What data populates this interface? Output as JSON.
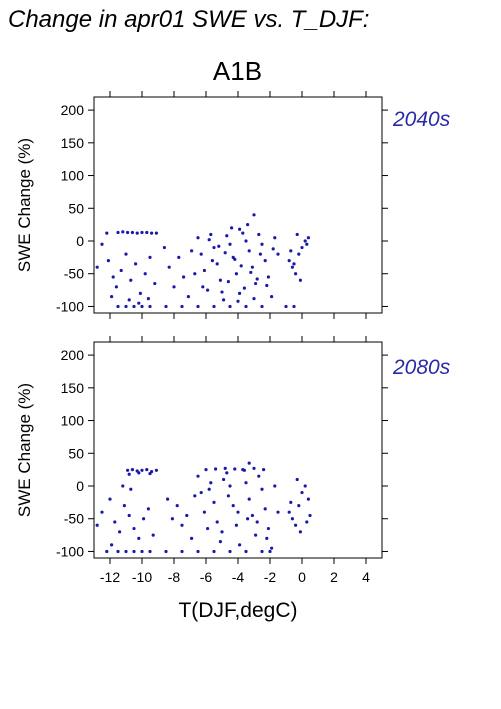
{
  "page": {
    "title": "Change in apr01 SWE vs. T_DJF:",
    "scenario": "A1B",
    "xlabel": "T(DJF,degC)"
  },
  "colors": {
    "points": "#1a1aaa",
    "period_label": "#2a2aa8",
    "axis": "#000000"
  },
  "chart_data": [
    {
      "type": "scatter",
      "period": "2040s",
      "xlabel": "",
      "ylabel": "SWE Change (%)",
      "xlim": [
        -13,
        5
      ],
      "ylim": [
        -110,
        220
      ],
      "xticks": [],
      "yticks": [
        -100,
        -50,
        0,
        50,
        100,
        150,
        200
      ],
      "points": [
        [
          -12.2,
          12
        ],
        [
          -11.5,
          13
        ],
        [
          -11.2,
          14
        ],
        [
          -10.9,
          13
        ],
        [
          -10.6,
          13
        ],
        [
          -10.3,
          12
        ],
        [
          -10.0,
          13
        ],
        [
          -9.7,
          13
        ],
        [
          -9.4,
          12
        ],
        [
          -9.1,
          12
        ],
        [
          -12.5,
          -5
        ],
        [
          -12.1,
          -30
        ],
        [
          -11.8,
          -55
        ],
        [
          -11.6,
          -70
        ],
        [
          -11.3,
          -45
        ],
        [
          -11.0,
          -20
        ],
        [
          -10.7,
          -60
        ],
        [
          -10.4,
          -35
        ],
        [
          -10.1,
          -80
        ],
        [
          -9.8,
          -50
        ],
        [
          -9.5,
          -25
        ],
        [
          -9.2,
          -65
        ],
        [
          -12.8,
          -40
        ],
        [
          -11.9,
          -85
        ],
        [
          -10.8,
          -90
        ],
        [
          -10.2,
          -95
        ],
        [
          -9.6,
          -88
        ],
        [
          -11.5,
          -100
        ],
        [
          -11.0,
          -100
        ],
        [
          -10.5,
          -100
        ],
        [
          -10.0,
          -100
        ],
        [
          -9.5,
          -100
        ],
        [
          -8.5,
          -100
        ],
        [
          -7.5,
          -100
        ],
        [
          -6.5,
          -100
        ],
        [
          -5.5,
          -100
        ],
        [
          -4.5,
          -100
        ],
        [
          -3.5,
          -100
        ],
        [
          -2.5,
          -100
        ],
        [
          -1.0,
          -100
        ],
        [
          -0.5,
          -100
        ],
        [
          -8.6,
          -10
        ],
        [
          -8.3,
          -40
        ],
        [
          -8.0,
          -70
        ],
        [
          -7.7,
          -25
        ],
        [
          -7.4,
          -55
        ],
        [
          -7.1,
          -85
        ],
        [
          -6.9,
          -15
        ],
        [
          -6.7,
          -50
        ],
        [
          -6.5,
          5
        ],
        [
          -6.3,
          -20
        ],
        [
          -6.1,
          -45
        ],
        [
          -5.9,
          -75
        ],
        [
          -5.7,
          10
        ],
        [
          -5.5,
          -10
        ],
        [
          -5.3,
          -35
        ],
        [
          -5.1,
          -60
        ],
        [
          -4.9,
          -90
        ],
        [
          -4.7,
          8
        ],
        [
          -4.5,
          -5
        ],
        [
          -4.3,
          -25
        ],
        [
          -4.1,
          -50
        ],
        [
          -3.9,
          -80
        ],
        [
          -3.7,
          12
        ],
        [
          -3.5,
          0
        ],
        [
          -3.3,
          -15
        ],
        [
          -3.1,
          -40
        ],
        [
          -2.9,
          -65
        ],
        [
          -2.7,
          10
        ],
        [
          -2.5,
          -5
        ],
        [
          -2.3,
          -30
        ],
        [
          -2.1,
          -55
        ],
        [
          -1.9,
          -85
        ],
        [
          -1.7,
          5
        ],
        [
          -1.5,
          -20
        ],
        [
          -5.8,
          2
        ],
        [
          -5.2,
          -8
        ],
        [
          -4.8,
          -18
        ],
        [
          -4.2,
          -28
        ],
        [
          -3.8,
          -38
        ],
        [
          -3.2,
          -48
        ],
        [
          -2.8,
          -58
        ],
        [
          -2.2,
          -68
        ],
        [
          -1.8,
          -12
        ],
        [
          -5.6,
          -30
        ],
        [
          -4.6,
          -62
        ],
        [
          -3.6,
          -72
        ],
        [
          -2.6,
          -20
        ],
        [
          -6.2,
          -70
        ],
        [
          -5.0,
          -78
        ],
        [
          -4.0,
          -92
        ],
        [
          -3.0,
          -88
        ],
        [
          -4.4,
          20
        ],
        [
          -3.4,
          25
        ],
        [
          -3.0,
          40
        ],
        [
          -3.9,
          18
        ],
        [
          -0.8,
          -30
        ],
        [
          -0.6,
          -40
        ],
        [
          -0.4,
          -50
        ],
        [
          -0.2,
          -20
        ],
        [
          0.0,
          -10
        ],
        [
          0.2,
          0
        ],
        [
          0.4,
          5
        ],
        [
          -0.3,
          10
        ],
        [
          -0.1,
          -60
        ],
        [
          0.3,
          -5
        ],
        [
          -0.7,
          -15
        ],
        [
          -0.5,
          -35
        ]
      ]
    },
    {
      "type": "scatter",
      "period": "2080s",
      "xlabel": "T(DJF,degC)",
      "ylabel": "SWE Change (%)",
      "xlim": [
        -13,
        5
      ],
      "ylim": [
        -110,
        220
      ],
      "xticks": [
        -12,
        -10,
        -8,
        -6,
        -4,
        -2,
        0,
        2,
        4
      ],
      "yticks": [
        -100,
        -50,
        0,
        50,
        100,
        150,
        200
      ],
      "points": [
        [
          -10.9,
          24
        ],
        [
          -10.6,
          25
        ],
        [
          -10.3,
          23
        ],
        [
          -10.0,
          24
        ],
        [
          -9.7,
          25
        ],
        [
          -9.4,
          22
        ],
        [
          -9.1,
          24
        ],
        [
          -10.8,
          18
        ],
        [
          -10.2,
          20
        ],
        [
          -9.5,
          19
        ],
        [
          -12.5,
          -40
        ],
        [
          -12.0,
          -20
        ],
        [
          -11.7,
          -55
        ],
        [
          -11.4,
          -70
        ],
        [
          -11.1,
          -30
        ],
        [
          -10.8,
          -45
        ],
        [
          -10.5,
          -65
        ],
        [
          -10.2,
          -80
        ],
        [
          -9.9,
          -50
        ],
        [
          -9.6,
          -35
        ],
        [
          -9.3,
          -75
        ],
        [
          -12.8,
          -60
        ],
        [
          -11.9,
          -90
        ],
        [
          -11.2,
          0
        ],
        [
          -10.7,
          -5
        ],
        [
          -12.2,
          -100
        ],
        [
          -11.5,
          -100
        ],
        [
          -11.0,
          -100
        ],
        [
          -10.5,
          -100
        ],
        [
          -10.0,
          -100
        ],
        [
          -9.5,
          -100
        ],
        [
          -8.5,
          -100
        ],
        [
          -7.5,
          -100
        ],
        [
          -6.5,
          -100
        ],
        [
          -5.5,
          -100
        ],
        [
          -4.5,
          -100
        ],
        [
          -3.5,
          -100
        ],
        [
          -2.5,
          -100
        ],
        [
          -2.0,
          -100
        ],
        [
          -8.4,
          -20
        ],
        [
          -8.1,
          -50
        ],
        [
          -7.8,
          -30
        ],
        [
          -7.5,
          -60
        ],
        [
          -7.2,
          -45
        ],
        [
          -6.9,
          -80
        ],
        [
          -6.7,
          -15
        ],
        [
          -6.5,
          15
        ],
        [
          -6.3,
          -10
        ],
        [
          -6.1,
          -40
        ],
        [
          -5.9,
          -65
        ],
        [
          -5.7,
          5
        ],
        [
          -5.5,
          -25
        ],
        [
          -5.3,
          -55
        ],
        [
          -5.1,
          -85
        ],
        [
          -4.9,
          10
        ],
        [
          -4.7,
          20
        ],
        [
          -4.5,
          0
        ],
        [
          -4.3,
          -30
        ],
        [
          -4.1,
          -60
        ],
        [
          -3.9,
          -90
        ],
        [
          -3.7,
          25
        ],
        [
          -3.5,
          5
        ],
        [
          -3.3,
          -20
        ],
        [
          -3.1,
          -45
        ],
        [
          -2.9,
          -75
        ],
        [
          -2.7,
          15
        ],
        [
          -2.5,
          -5
        ],
        [
          -2.3,
          -35
        ],
        [
          -2.1,
          -65
        ],
        [
          -1.9,
          -95
        ],
        [
          -1.7,
          0
        ],
        [
          -1.5,
          -40
        ],
        [
          -6.0,
          25
        ],
        [
          -5.4,
          26
        ],
        [
          -4.8,
          27
        ],
        [
          -4.2,
          26
        ],
        [
          -3.6,
          24
        ],
        [
          -3.0,
          27
        ],
        [
          -2.4,
          25
        ],
        [
          -3.3,
          35
        ],
        [
          -5.8,
          -5
        ],
        [
          -4.6,
          -15
        ],
        [
          -3.4,
          -50
        ],
        [
          -2.2,
          -80
        ],
        [
          -5.0,
          -70
        ],
        [
          -4.0,
          -40
        ],
        [
          -2.8,
          -55
        ],
        [
          -0.8,
          -40
        ],
        [
          -0.6,
          -50
        ],
        [
          -0.4,
          -60
        ],
        [
          -0.2,
          -30
        ],
        [
          0.0,
          -10
        ],
        [
          0.2,
          0
        ],
        [
          0.4,
          -20
        ],
        [
          -0.3,
          10
        ],
        [
          0.3,
          -55
        ],
        [
          0.5,
          -45
        ],
        [
          -0.7,
          -25
        ],
        [
          -0.1,
          -70
        ]
      ]
    }
  ]
}
